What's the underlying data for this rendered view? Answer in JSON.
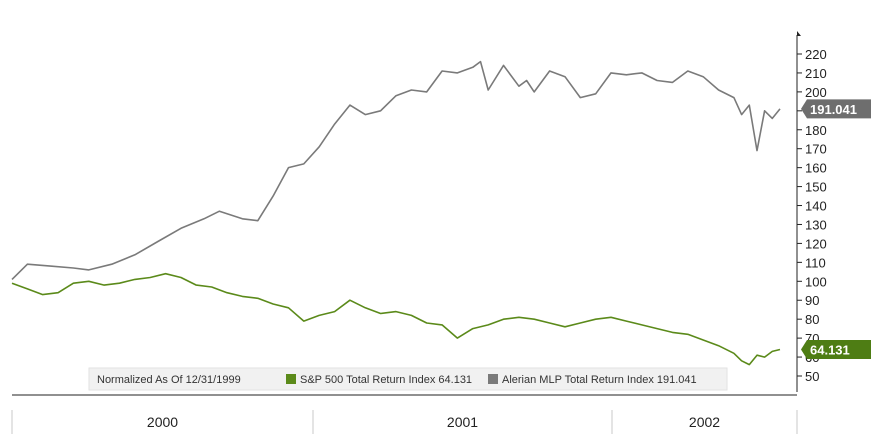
{
  "chart_data": {
    "type": "line",
    "title": "",
    "xlabel": "",
    "ylabel": "",
    "ylim": [
      50,
      220
    ],
    "y_ticks": [
      50,
      60,
      70,
      80,
      90,
      100,
      110,
      120,
      130,
      140,
      150,
      160,
      170,
      180,
      190,
      200,
      210,
      220
    ],
    "x_period_labels": [
      "2000",
      "2001",
      "2002"
    ],
    "grid": false,
    "legend": {
      "placement": "bottom-center",
      "note": "Normalized As Of 12/31/1999",
      "entries": [
        "S&P 500 Total Return Index 64.131",
        "Alerian MLP Total Return Index 191.041"
      ]
    },
    "series": [
      {
        "name": "Alerian MLP Total Return Index",
        "color": "#7a7a7a",
        "last_value_label": "191.041",
        "x": [
          0,
          0.02,
          0.05,
          0.08,
          0.1,
          0.13,
          0.16,
          0.19,
          0.22,
          0.25,
          0.27,
          0.3,
          0.32,
          0.34,
          0.36,
          0.38,
          0.4,
          0.42,
          0.44,
          0.46,
          0.48,
          0.5,
          0.52,
          0.54,
          0.56,
          0.58,
          0.6,
          0.61,
          0.62,
          0.64,
          0.66,
          0.67,
          0.68,
          0.7,
          0.72,
          0.74,
          0.76,
          0.78,
          0.8,
          0.82,
          0.84,
          0.86,
          0.88,
          0.9,
          0.92,
          0.94,
          0.95,
          0.96,
          0.97,
          0.98,
          0.99,
          1.0
        ],
        "values": [
          101,
          109,
          108,
          107,
          106,
          109,
          114,
          121,
          128,
          133,
          137,
          133,
          132,
          145,
          160,
          162,
          171,
          183,
          193,
          188,
          190,
          198,
          201,
          200,
          211,
          210,
          213,
          216,
          201,
          214,
          203,
          206,
          200,
          211,
          208,
          197,
          199,
          210,
          209,
          210,
          206,
          205,
          211,
          208,
          201,
          197,
          188,
          193,
          169,
          190,
          186,
          191
        ]
      },
      {
        "name": "S&P 500 Total Return Index",
        "color": "#5b8a1a",
        "last_value_label": "64.131",
        "x": [
          0,
          0.02,
          0.04,
          0.06,
          0.08,
          0.1,
          0.12,
          0.14,
          0.16,
          0.18,
          0.2,
          0.22,
          0.24,
          0.26,
          0.28,
          0.3,
          0.32,
          0.34,
          0.36,
          0.38,
          0.4,
          0.42,
          0.44,
          0.46,
          0.48,
          0.5,
          0.52,
          0.54,
          0.56,
          0.58,
          0.6,
          0.62,
          0.64,
          0.66,
          0.68,
          0.7,
          0.72,
          0.74,
          0.76,
          0.78,
          0.8,
          0.82,
          0.84,
          0.86,
          0.88,
          0.9,
          0.92,
          0.94,
          0.95,
          0.96,
          0.97,
          0.98,
          0.99,
          1.0
        ],
        "values": [
          99,
          96,
          93,
          94,
          99,
          100,
          98,
          99,
          101,
          102,
          104,
          102,
          98,
          97,
          94,
          92,
          91,
          88,
          86,
          79,
          82,
          84,
          90,
          86,
          83,
          84,
          82,
          78,
          77,
          70,
          75,
          77,
          80,
          81,
          80,
          78,
          76,
          78,
          80,
          81,
          79,
          77,
          75,
          73,
          72,
          69,
          66,
          62,
          58,
          56,
          61,
          60,
          63,
          64
        ]
      }
    ]
  }
}
